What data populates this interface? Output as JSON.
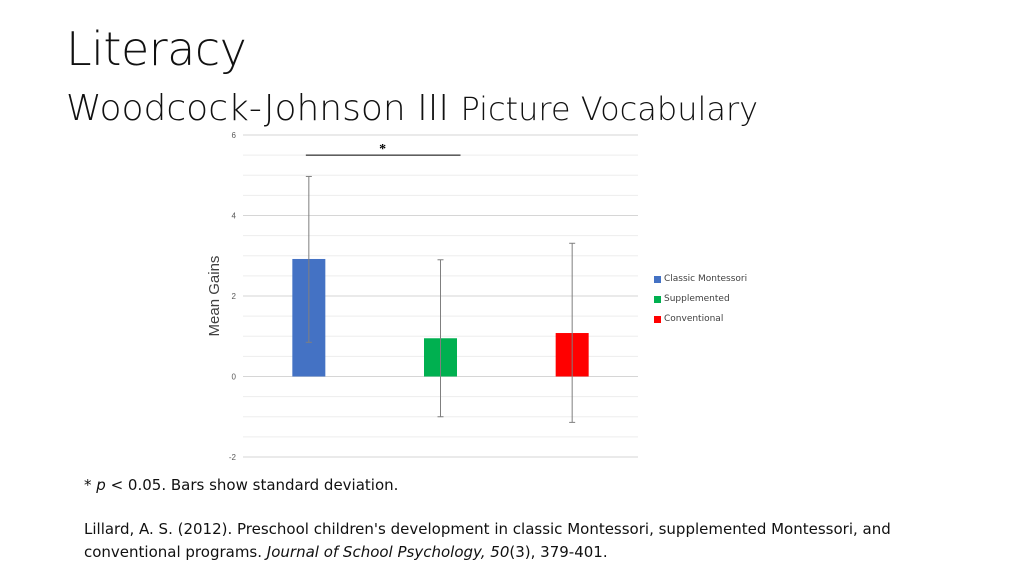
{
  "slide": {
    "title": "Literacy",
    "subtitle_part1": "Woodcock-Johnson III",
    "subtitle_part2": "Picture Vocabulary",
    "footnote_star": "*",
    "footnote_p": "p",
    "footnote_rest": "< 0.05. Bars show standard deviation.",
    "citation_part1": "Lillard, A. S. (2012). Preschool children's development in classic Montessori, supplemented Montessori, and conventional programs.",
    "citation_journal": "Journal of School Psychology, 50",
    "citation_part2": "(3), 379-401."
  },
  "chart_data": {
    "type": "bar",
    "categories": [
      "Classic Montessori",
      "Supplemented",
      "Conventional"
    ],
    "values": [
      2.92,
      0.95,
      1.08
    ],
    "error_low": [
      0.85,
      -1.0,
      -1.14
    ],
    "error_high": [
      4.97,
      2.9,
      3.31
    ],
    "colors": [
      "#4472C4",
      "#00B050",
      "#FF0000"
    ],
    "ylabel": "Mean Gains",
    "ylim": [
      -2,
      6
    ],
    "yticks": [
      -2,
      0,
      2,
      4,
      6
    ],
    "grid": true,
    "legend_position": "right",
    "significance": {
      "label": "*",
      "from_category": 0,
      "to_category": 1
    }
  }
}
